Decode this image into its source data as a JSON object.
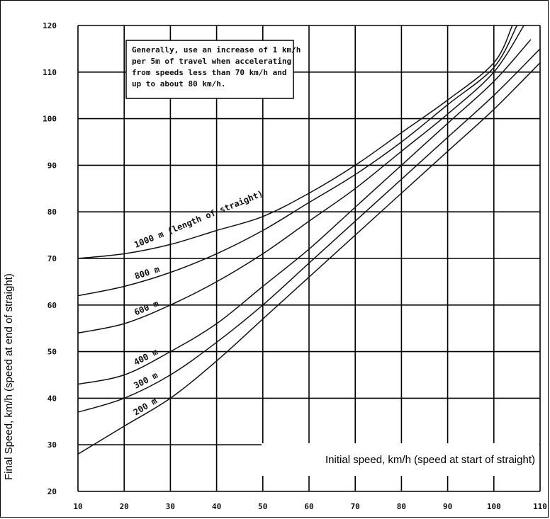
{
  "chart_data": {
    "type": "line",
    "ylabel": "Final Speed, km/h (speed at end of straight)",
    "xlabel": "Initial speed, km/h (speed at start of straight)",
    "xlim": [
      10,
      110
    ],
    "ylim": [
      20,
      120
    ],
    "x_ticks": [
      10,
      20,
      30,
      40,
      50,
      60,
      70,
      80,
      90,
      100,
      110
    ],
    "y_ticks": [
      20,
      30,
      40,
      50,
      60,
      70,
      80,
      90,
      100,
      110,
      120
    ],
    "grid": true,
    "note": [
      "Generally, use an increase of 1 km/h",
      "per 5m of travel when accelerating",
      "from speeds less than 70 km/h and",
      "up to about 80 km/h."
    ],
    "series": [
      {
        "name": "1000 m (length of straight)",
        "x": [
          10,
          20,
          30,
          40,
          50,
          60,
          70,
          80,
          90,
          100,
          104
        ],
        "values": [
          70,
          71,
          73,
          76,
          79,
          84,
          90,
          97,
          104,
          112,
          120
        ]
      },
      {
        "name": "800 m",
        "x": [
          10,
          20,
          30,
          40,
          50,
          60,
          70,
          80,
          90,
          100,
          105
        ],
        "values": [
          62,
          64,
          67,
          71,
          76,
          82,
          88,
          95,
          103,
          111,
          120
        ]
      },
      {
        "name": "600 m",
        "x": [
          10,
          20,
          30,
          40,
          50,
          60,
          70,
          80,
          90,
          100,
          106.5
        ],
        "values": [
          54,
          56,
          60,
          65,
          71,
          78,
          85,
          93,
          101,
          110,
          120
        ]
      },
      {
        "name": "400 m",
        "x": [
          10,
          20,
          30,
          40,
          50,
          60,
          70,
          80,
          90,
          100,
          108
        ],
        "values": [
          43,
          45,
          50,
          56,
          64,
          72,
          81,
          90,
          99,
          108,
          117
        ]
      },
      {
        "name": "300 m",
        "x": [
          10,
          20,
          30,
          40,
          50,
          60,
          70,
          80,
          90,
          100,
          110
        ],
        "values": [
          37,
          40,
          45,
          52,
          60,
          69,
          78,
          87,
          96,
          105,
          115
        ]
      },
      {
        "name": "200 m",
        "x": [
          10,
          20,
          30,
          40,
          50,
          60,
          70,
          80,
          90,
          100,
          110
        ],
        "values": [
          28,
          34,
          40,
          48,
          57,
          66,
          75,
          84,
          93,
          102,
          112
        ]
      }
    ]
  }
}
